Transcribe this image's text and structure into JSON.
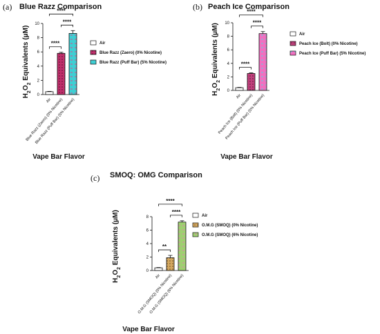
{
  "chart_data": [
    {
      "type": "bar",
      "panel": "(a)",
      "title": "Blue Razz Comparison",
      "ylabel": "H2O2 Equivalents (μM)",
      "xlabel": "Vape Bar Flavor",
      "ylim": [
        0,
        10
      ],
      "yticks": [
        0,
        2,
        4,
        6,
        8,
        10
      ],
      "categories": [
        "Air",
        "Blue Razz (Zaero) (0% Nicotine)",
        "Blue Razz (Puff Bar) (5% Nicotine)"
      ],
      "values": [
        0.4,
        5.8,
        8.6
      ],
      "errors": [
        0.05,
        0.15,
        0.4
      ],
      "colors": [
        "#ffffff",
        "#c0306c",
        "#3ecfd3"
      ],
      "legend": [
        "Air",
        "Blue Razz (Zaero) (0% Nicotine)",
        "Blue Razz (Puff Bar) (5% Nicotine)"
      ],
      "legend_position": "right",
      "significance": [
        {
          "from": 0,
          "to": 1,
          "label": "****"
        },
        {
          "from": 1,
          "to": 2,
          "label": "****"
        },
        {
          "from": 0,
          "to": 2,
          "label": "****"
        }
      ]
    },
    {
      "type": "bar",
      "panel": "(b)",
      "title": "Peach Ice Comparison",
      "ylabel": "H2O2 Equivalents (μM)",
      "xlabel": "Vape Bar Flavor",
      "ylim": [
        0,
        10
      ],
      "yticks": [
        0,
        2,
        4,
        6,
        8,
        10
      ],
      "categories": [
        "Air",
        "Peach Ice (Bolt) (0% Nicotine)",
        "Peach Ice (Puff Bar) (5% Nicotine)"
      ],
      "values": [
        0.4,
        2.5,
        8.4
      ],
      "errors": [
        0.05,
        0.1,
        0.3
      ],
      "colors": [
        "#ffffff",
        "#c0407c",
        "#f070c0"
      ],
      "legend": [
        "Air",
        "Peach Ice (Bolt) (0% Nicotine)",
        "Peach Ice (Puff Bar) (5% Nicotine)"
      ],
      "legend_position": "right",
      "significance": [
        {
          "from": 0,
          "to": 1,
          "label": "****"
        },
        {
          "from": 1,
          "to": 2,
          "label": "****"
        },
        {
          "from": 0,
          "to": 2,
          "label": "****"
        }
      ]
    },
    {
      "type": "bar",
      "panel": "(c)",
      "title": "SMOQ: OMG Comparison",
      "ylabel": "H2O2 Equivalents (μM)",
      "xlabel": "Vape Bar Flavor",
      "ylim": [
        0,
        8
      ],
      "yticks": [
        0,
        2,
        4,
        6,
        8
      ],
      "categories": [
        "Air",
        "O.M.G (SMOQ) (0% Nicotine)",
        "O.M.G (SMOQ) (6% Nicotine)"
      ],
      "values": [
        0.4,
        1.9,
        7.2
      ],
      "errors": [
        0.05,
        0.35,
        0.2
      ],
      "colors": [
        "#ffffff",
        "#d4a860",
        "#9ed070"
      ],
      "legend": [
        "Air",
        "O.M.G (SMOQ) (0% Nicotine)",
        "O.M.G (SMOQ) (6% Nicotine)"
      ],
      "legend_position": "right",
      "significance": [
        {
          "from": 0,
          "to": 1,
          "label": "**"
        },
        {
          "from": 1,
          "to": 2,
          "label": "****"
        },
        {
          "from": 0,
          "to": 2,
          "label": "****"
        }
      ]
    }
  ]
}
